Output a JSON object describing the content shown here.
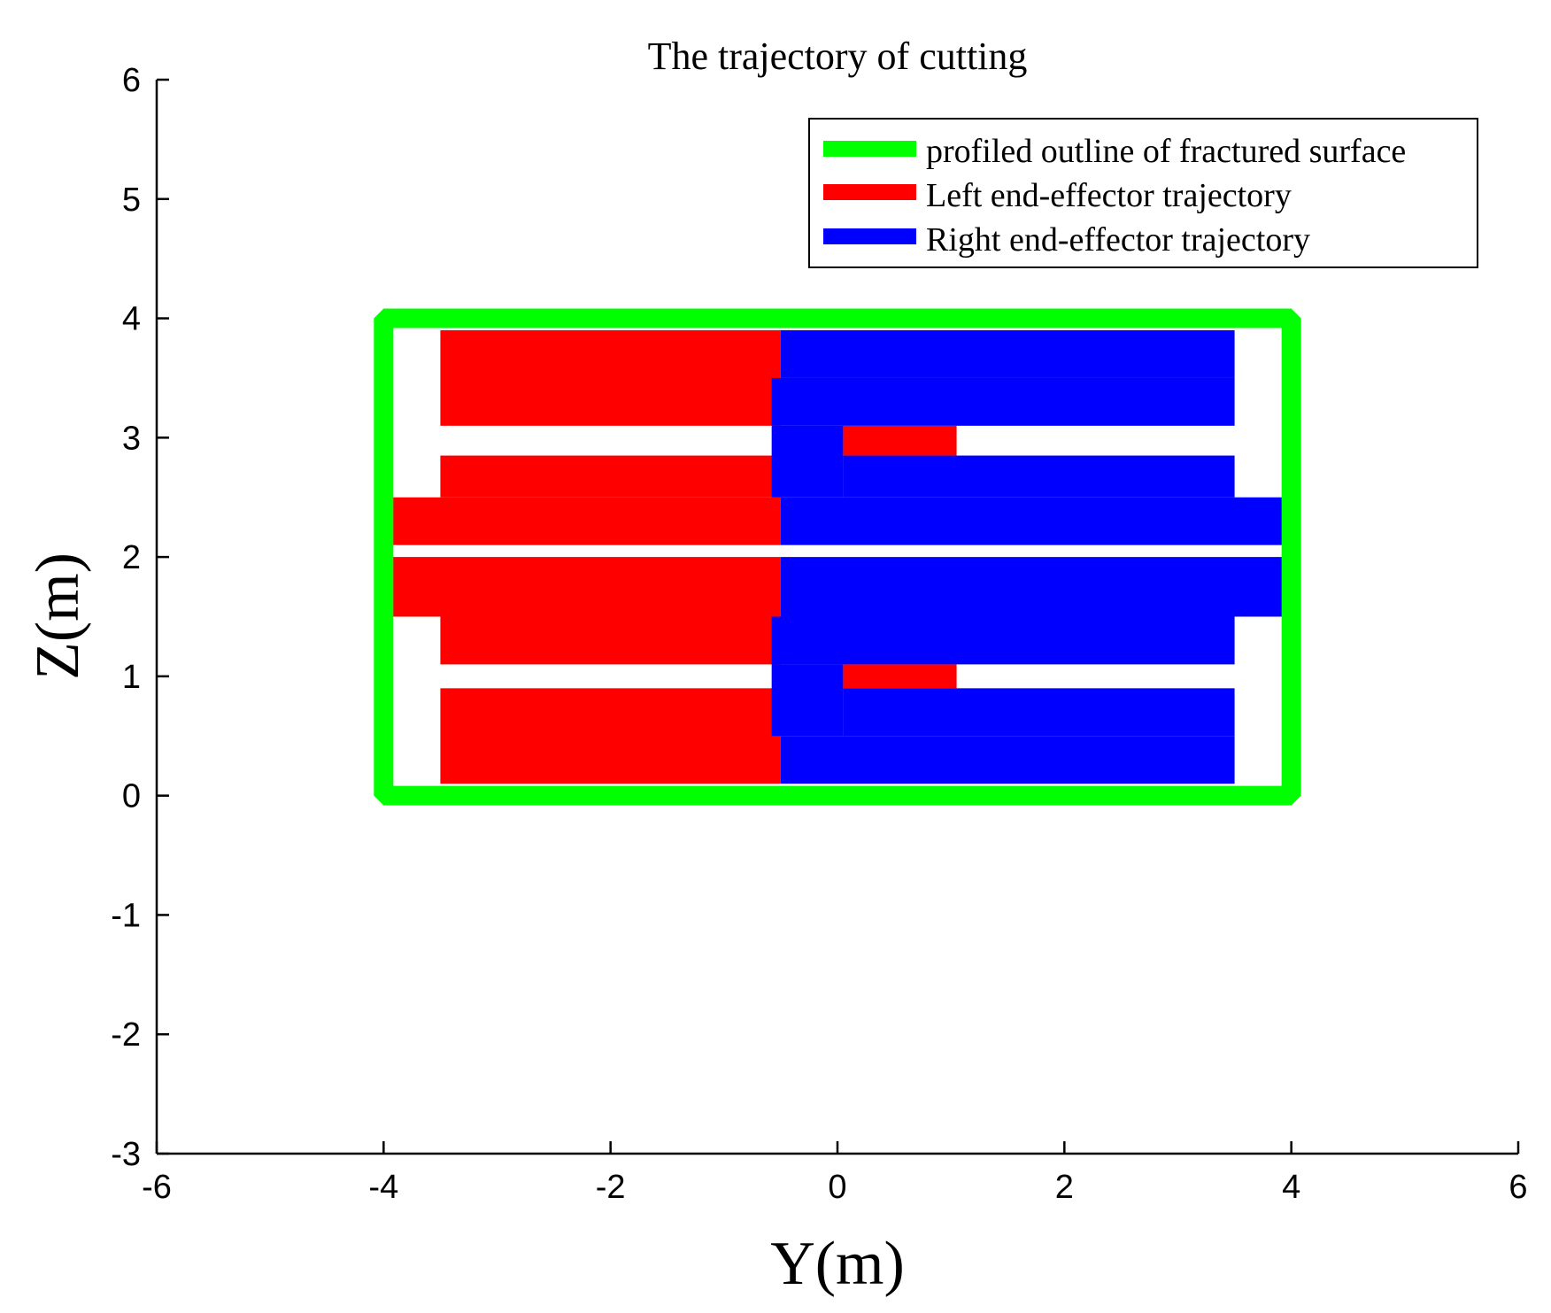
{
  "chart_data": {
    "type": "area",
    "title": "The trajectory of cutting",
    "xlabel": "Y(m)",
    "ylabel": "Z(m)",
    "xlim": [
      -6,
      6
    ],
    "ylim": [
      -3,
      6
    ],
    "xticks": [
      -6,
      -4,
      -2,
      0,
      2,
      4,
      6
    ],
    "yticks": [
      -3,
      -2,
      -1,
      0,
      1,
      2,
      3,
      4,
      5,
      6
    ],
    "grid": false,
    "legend_position": "top-right",
    "series": [
      {
        "name": "profiled outline of fractured surface",
        "color": "#00ff00",
        "kind": "outline",
        "points": [
          [
            -4.0,
            4.0
          ],
          [
            4.0,
            4.0
          ],
          [
            4.0,
            0.0
          ],
          [
            -4.0,
            0.0
          ]
        ]
      },
      {
        "name": "Left end-effector trajectory",
        "color": "#ff0000",
        "kind": "swept-regions",
        "regions": [
          {
            "y": [
              -3.5,
              -0.5
            ],
            "z": [
              3.1,
              3.9
            ]
          },
          {
            "y": [
              -3.5,
              -0.5
            ],
            "z": [
              2.5,
              2.85
            ]
          },
          {
            "y": [
              -4.05,
              -0.5
            ],
            "z": [
              2.1,
              2.5
            ]
          },
          {
            "y": [
              -4.05,
              -0.5
            ],
            "z": [
              1.5,
              2.0
            ]
          },
          {
            "y": [
              -3.5,
              -0.5
            ],
            "z": [
              1.1,
              1.5
            ]
          },
          {
            "y": [
              -3.5,
              -0.5
            ],
            "z": [
              0.1,
              0.9
            ]
          },
          {
            "y": [
              0.05,
              1.05
            ],
            "z": [
              2.85,
              3.1
            ]
          },
          {
            "y": [
              0.05,
              1.05
            ],
            "z": [
              0.9,
              1.1
            ]
          }
        ]
      },
      {
        "name": "Right end-effector trajectory",
        "color": "#0000ff",
        "kind": "swept-regions",
        "regions": [
          {
            "y": [
              -0.5,
              3.5
            ],
            "z": [
              3.5,
              3.9
            ]
          },
          {
            "y": [
              -0.58,
              3.5
            ],
            "z": [
              3.1,
              3.5
            ]
          },
          {
            "y": [
              -0.58,
              0.05
            ],
            "z": [
              2.5,
              3.1
            ]
          },
          {
            "y": [
              0.05,
              3.5
            ],
            "z": [
              2.5,
              2.85
            ]
          },
          {
            "y": [
              -0.5,
              4.05
            ],
            "z": [
              2.1,
              2.5
            ]
          },
          {
            "y": [
              -0.5,
              4.05
            ],
            "z": [
              1.5,
              2.0
            ]
          },
          {
            "y": [
              -0.58,
              3.5
            ],
            "z": [
              1.1,
              1.5
            ]
          },
          {
            "y": [
              -0.58,
              0.05
            ],
            "z": [
              0.5,
              1.1
            ]
          },
          {
            "y": [
              0.05,
              3.5
            ],
            "z": [
              0.5,
              0.9
            ]
          },
          {
            "y": [
              -0.5,
              3.5
            ],
            "z": [
              0.1,
              0.5
            ]
          }
        ]
      }
    ]
  }
}
